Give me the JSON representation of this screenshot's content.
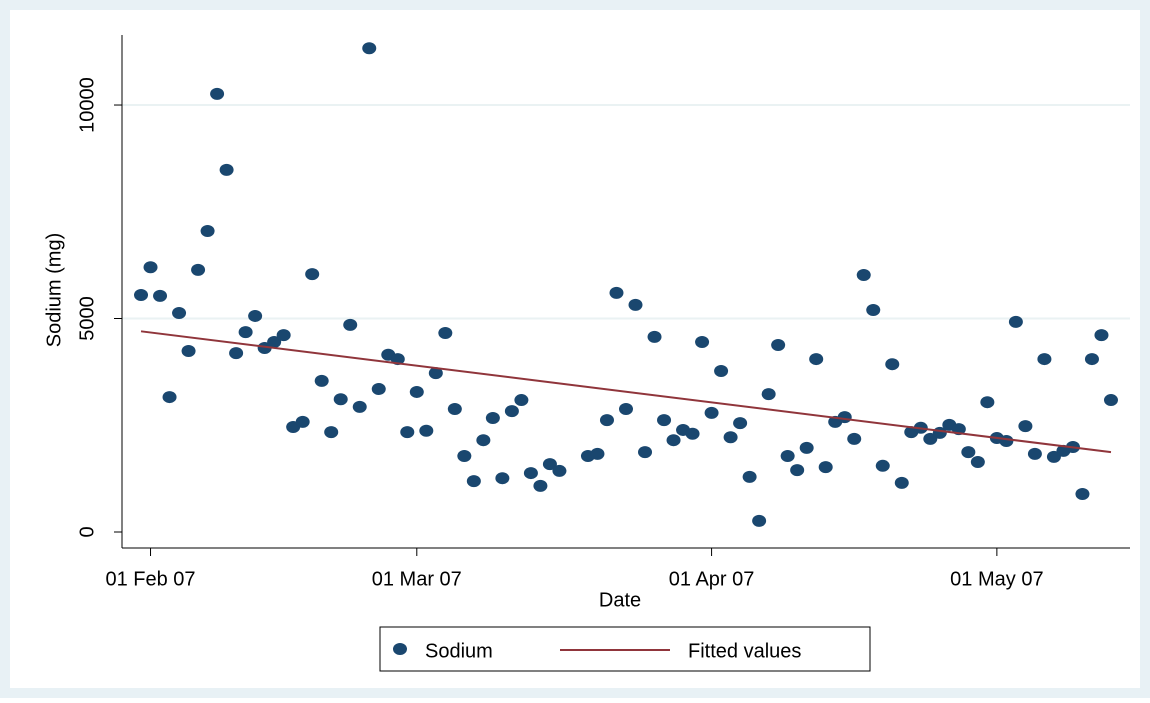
{
  "chart_data": {
    "type": "scatter",
    "xlabel": "Date",
    "ylabel": "Sodium (mg)",
    "xlim": [
      "2007-01-29",
      "2007-05-15"
    ],
    "xticks": [
      {
        "value": "2007-02-01",
        "label": "01 Feb 07"
      },
      {
        "value": "2007-03-01",
        "label": "01 Mar 07"
      },
      {
        "value": "2007-04-01",
        "label": "01 Apr 07"
      },
      {
        "value": "2007-05-01",
        "label": "01 May 07"
      }
    ],
    "ylim": [
      -375,
      11640
    ],
    "yticks": [
      0,
      5000,
      10000
    ],
    "grid": true,
    "legend": "bottom",
    "series": [
      {
        "name": "Sodium",
        "type": "scatter",
        "color": "#1a476f",
        "x": [
          "2007-01-31",
          "2007-02-01",
          "2007-02-02",
          "2007-02-03",
          "2007-02-04",
          "2007-02-05",
          "2007-02-06",
          "2007-02-07",
          "2007-02-08",
          "2007-02-09",
          "2007-02-10",
          "2007-02-11",
          "2007-02-12",
          "2007-02-13",
          "2007-02-14",
          "2007-02-15",
          "2007-02-16",
          "2007-02-17",
          "2007-02-18",
          "2007-02-19",
          "2007-02-20",
          "2007-02-21",
          "2007-02-22",
          "2007-02-23",
          "2007-02-24",
          "2007-02-25",
          "2007-02-26",
          "2007-02-27",
          "2007-02-28",
          "2007-03-01",
          "2007-03-02",
          "2007-03-03",
          "2007-03-04",
          "2007-03-05",
          "2007-03-06",
          "2007-03-07",
          "2007-03-08",
          "2007-03-09",
          "2007-03-10",
          "2007-03-11",
          "2007-03-12",
          "2007-03-13",
          "2007-03-14",
          "2007-03-15",
          "2007-03-16",
          "2007-03-19",
          "2007-03-20",
          "2007-03-21",
          "2007-03-22",
          "2007-03-23",
          "2007-03-24",
          "2007-03-25",
          "2007-03-26",
          "2007-03-27",
          "2007-03-28",
          "2007-03-29",
          "2007-03-30",
          "2007-03-31",
          "2007-04-01",
          "2007-04-02",
          "2007-04-03",
          "2007-04-04",
          "2007-04-05",
          "2007-04-06",
          "2007-04-07",
          "2007-04-08",
          "2007-04-09",
          "2007-04-10",
          "2007-04-11",
          "2007-04-12",
          "2007-04-13",
          "2007-04-14",
          "2007-04-15",
          "2007-04-16",
          "2007-04-17",
          "2007-04-18",
          "2007-04-19",
          "2007-04-20",
          "2007-04-21",
          "2007-04-22",
          "2007-04-23",
          "2007-04-24",
          "2007-04-25",
          "2007-04-26",
          "2007-04-27",
          "2007-04-28",
          "2007-04-29",
          "2007-04-30",
          "2007-05-01",
          "2007-05-02",
          "2007-05-03",
          "2007-05-04",
          "2007-05-05",
          "2007-05-06",
          "2007-05-07",
          "2007-05-08",
          "2007-05-09",
          "2007-05-10",
          "2007-05-11",
          "2007-05-12",
          "2007-05-13"
        ],
        "values": [
          5550,
          6200,
          5530,
          3160,
          5130,
          4240,
          6140,
          7050,
          10260,
          8480,
          4190,
          4680,
          5060,
          4310,
          4450,
          4610,
          2460,
          2580,
          6040,
          3540,
          2340,
          3110,
          4850,
          2930,
          11330,
          3350,
          4150,
          4050,
          2340,
          3280,
          2370,
          3720,
          4660,
          2880,
          1780,
          1190,
          2150,
          2670,
          1260,
          2830,
          3090,
          1380,
          1080,
          1590,
          1430,
          1780,
          1830,
          2620,
          5600,
          2880,
          5320,
          1870,
          4570,
          2620,
          2150,
          2390,
          2300,
          4450,
          2790,
          3770,
          2220,
          2550,
          1290,
          260,
          3230,
          4380,
          1780,
          1450,
          1970,
          4050,
          1520,
          2580,
          2690,
          2180,
          6020,
          5200,
          1550,
          3930,
          1150,
          2340,
          2440,
          2180,
          2320,
          2510,
          2410,
          1870,
          1640,
          3040,
          2200,
          2130,
          4920,
          2480,
          1830,
          4050,
          1760,
          1900,
          1990,
          890,
          4050,
          4610,
          3090
        ]
      },
      {
        "name": "Fitted values",
        "type": "line",
        "color": "#90353b",
        "x": [
          "2007-01-31",
          "2007-05-13"
        ],
        "values": [
          4700,
          1870
        ]
      }
    ]
  }
}
